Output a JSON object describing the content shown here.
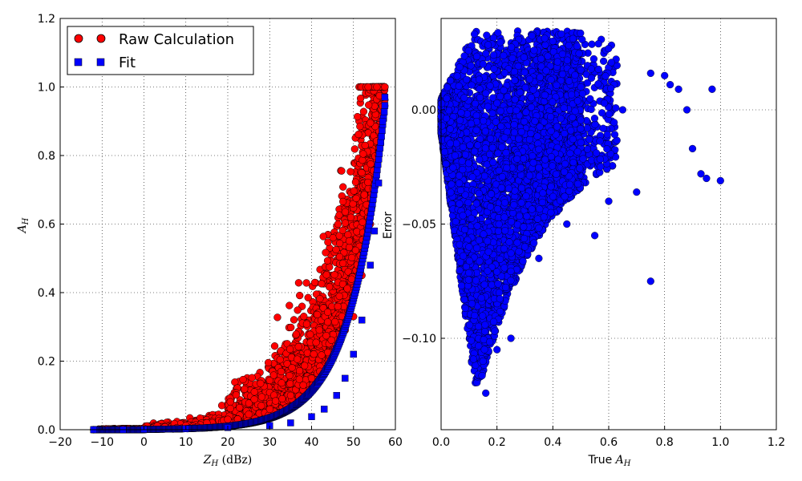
{
  "chart_data": [
    {
      "type": "scatter",
      "xlabel": "Z_H (dBz)",
      "ylabel": "A_H",
      "xlim": [
        -20,
        60
      ],
      "ylim": [
        0,
        1.2
      ],
      "x_ticks": [
        "−20",
        "−10",
        "0",
        "10",
        "20",
        "30",
        "40",
        "50",
        "60"
      ],
      "y_ticks": [
        "0.0",
        "0.2",
        "0.4",
        "0.6",
        "0.8",
        "1.0",
        "1.2"
      ],
      "grid": true,
      "legend_position": "top-left",
      "series": [
        {
          "name": "Raw Calculation",
          "marker": "circle",
          "color": "#ff0000",
          "relation": "scattered cloud above the fit; A_H grows roughly exponentially with Z_H",
          "x": [
            -12,
            -5,
            0,
            5,
            10,
            15,
            20,
            25,
            28,
            30,
            33,
            35,
            38,
            40,
            42,
            44,
            46,
            48,
            50,
            52,
            54,
            56,
            57.5
          ],
          "y": [
            0.0,
            0.002,
            0.004,
            0.008,
            0.012,
            0.02,
            0.03,
            0.045,
            0.07,
            0.06,
            0.09,
            0.1,
            0.13,
            0.15,
            0.17,
            0.2,
            0.24,
            0.29,
            0.33,
            0.45,
            0.6,
            0.8,
            1.0
          ]
        },
        {
          "name": "Fit",
          "marker": "square",
          "color": "#0000ff",
          "x": [
            -12,
            -5,
            0,
            10,
            20,
            30,
            35,
            40,
            43,
            46,
            48,
            50,
            52,
            54,
            55,
            56,
            57,
            57.5
          ],
          "y": [
            0.0,
            0.0,
            0.001,
            0.003,
            0.006,
            0.012,
            0.02,
            0.038,
            0.06,
            0.1,
            0.15,
            0.22,
            0.32,
            0.48,
            0.58,
            0.72,
            0.9,
            0.97
          ]
        }
      ]
    },
    {
      "type": "scatter",
      "xlabel": "True A_H",
      "ylabel": "Error",
      "xlim": [
        0.0,
        1.2
      ],
      "ylim": [
        -0.14,
        0.04
      ],
      "x_ticks": [
        "0.0",
        "0.2",
        "0.4",
        "0.6",
        "0.8",
        "1.0",
        "1.2"
      ],
      "y_ticks": [
        "0.00",
        "−0.05",
        "−0.10"
      ],
      "grid": true,
      "series": [
        {
          "marker": "circle",
          "color": "#0000ff",
          "note": "dense cloud spanning roughly x 0–0.5, y −0.12 to 0.035, with sparse outliers to x≈1.0",
          "x": [
            0.02,
            0.05,
            0.1,
            0.12,
            0.15,
            0.16,
            0.2,
            0.25,
            0.3,
            0.35,
            0.4,
            0.45,
            0.5,
            0.55,
            0.6,
            0.65,
            0.7,
            0.75,
            0.75,
            0.8,
            0.82,
            0.85,
            0.88,
            0.9,
            0.93,
            0.95,
            0.97,
            1.0
          ],
          "y": [
            0.005,
            -0.02,
            -0.06,
            -0.09,
            -0.11,
            -0.124,
            -0.105,
            -0.1,
            -0.06,
            -0.065,
            0.03,
            -0.05,
            0.01,
            -0.055,
            -0.04,
            0.0,
            -0.036,
            -0.075,
            0.016,
            0.015,
            0.011,
            0.009,
            0.0,
            -0.017,
            -0.028,
            -0.03,
            0.009,
            -0.031
          ]
        }
      ]
    }
  ]
}
